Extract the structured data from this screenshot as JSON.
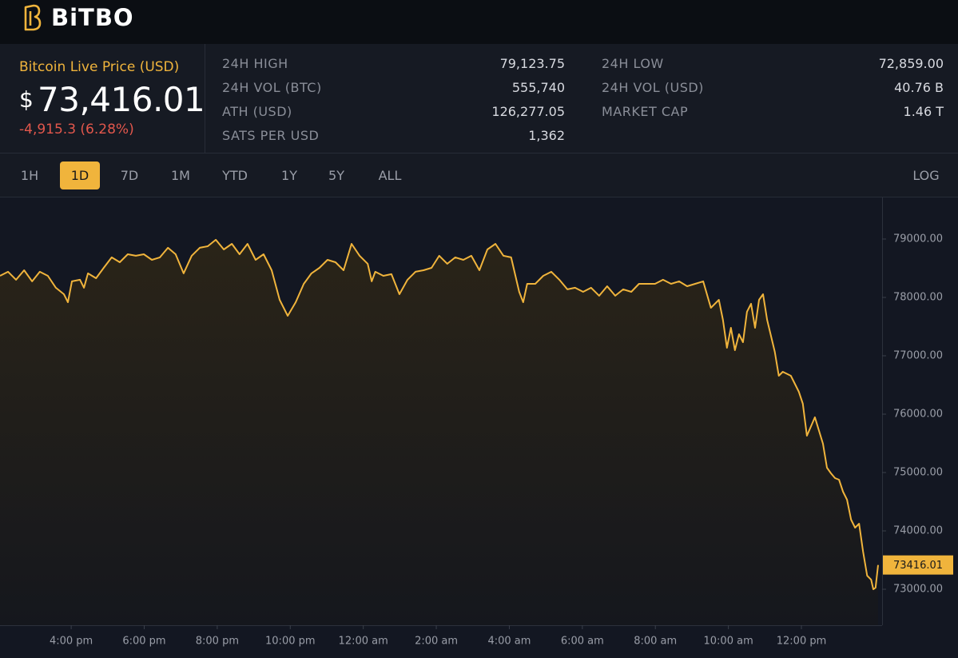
{
  "header": {
    "logo": "BiTBO"
  },
  "price_panel": {
    "label": "Bitcoin Live Price (USD)",
    "currency_symbol": "$",
    "price": "73,416.01",
    "change": "-4,915.3 (6.28%)"
  },
  "stats_left": [
    {
      "label": "24H HIGH",
      "value": "79,123.75"
    },
    {
      "label": "24H VOL (BTC)",
      "value": "555,740"
    },
    {
      "label": "ATH (USD)",
      "value": "126,277.05"
    },
    {
      "label": "SATS PER USD",
      "value": "1,362"
    }
  ],
  "stats_right": [
    {
      "label": "24H LOW",
      "value": "72,859.00"
    },
    {
      "label": "24H VOL (USD)",
      "value": "40.76 B"
    },
    {
      "label": "MARKET CAP",
      "value": "1.46 T"
    }
  ],
  "timeframes": [
    "1H",
    "1D",
    "7D",
    "1M",
    "YTD",
    "1Y",
    "5Y",
    "ALL"
  ],
  "selected_timeframe_index": 1,
  "log_toggle": "LOG",
  "chart_data": {
    "type": "area",
    "color": "#f0b43c",
    "grid": false,
    "x": [
      14.05,
      14.27,
      14.49,
      14.71,
      14.93,
      15.14,
      15.36,
      15.58,
      15.8,
      15.91,
      16.02,
      16.24,
      16.35,
      16.46,
      16.68,
      16.89,
      17.11,
      17.33,
      17.55,
      17.77,
      17.99,
      18.21,
      18.43,
      18.65,
      18.86,
      19.08,
      19.3,
      19.52,
      19.74,
      19.96,
      20.18,
      20.4,
      20.61,
      20.83,
      21.05,
      21.27,
      21.49,
      21.71,
      21.93,
      22.15,
      22.37,
      22.58,
      22.8,
      23.02,
      23.24,
      23.46,
      23.68,
      23.9,
      24.12,
      24.23,
      24.33,
      24.55,
      24.77,
      24.99,
      25.21,
      25.43,
      25.65,
      25.87,
      26.08,
      26.3,
      26.52,
      26.74,
      26.96,
      27.18,
      27.4,
      27.62,
      27.84,
      28.05,
      28.27,
      28.38,
      28.49,
      28.71,
      28.93,
      29.15,
      29.37,
      29.59,
      29.8,
      30.02,
      30.24,
      30.46,
      30.68,
      30.9,
      31.12,
      31.34,
      31.55,
      31.77,
      31.99,
      32.21,
      32.43,
      32.65,
      32.87,
      33.09,
      33.31,
      33.52,
      33.74,
      33.85,
      33.96,
      34.07,
      34.18,
      34.29,
      34.4,
      34.51,
      34.62,
      34.73,
      34.84,
      34.95,
      35.06,
      35.27,
      35.38,
      35.49,
      35.71,
      35.93,
      36.04,
      36.15,
      36.37,
      36.59,
      36.7,
      36.81,
      36.92,
      37.03,
      37.14,
      37.25,
      37.36,
      37.47,
      37.58,
      37.69,
      37.8,
      37.91,
      37.97,
      38.03,
      38.1
    ],
    "values": [
      78370,
      78439,
      78302,
      78466,
      78275,
      78439,
      78370,
      78165,
      78055,
      77918,
      78275,
      78302,
      78165,
      78412,
      78329,
      78507,
      78686,
      78603,
      78740,
      78713,
      78740,
      78644,
      78686,
      78850,
      78740,
      78412,
      78713,
      78850,
      78877,
      78987,
      78822,
      78918,
      78740,
      78918,
      78644,
      78740,
      78466,
      77959,
      77685,
      77918,
      78233,
      78412,
      78507,
      78644,
      78603,
      78466,
      78918,
      78713,
      78576,
      78275,
      78439,
      78370,
      78398,
      78055,
      78302,
      78439,
      78466,
      78507,
      78713,
      78576,
      78686,
      78644,
      78713,
      78466,
      78822,
      78918,
      78713,
      78686,
      78096,
      77918,
      78233,
      78233,
      78370,
      78439,
      78302,
      78138,
      78165,
      78096,
      78165,
      78028,
      78192,
      78028,
      78138,
      78096,
      78233,
      78233,
      78233,
      78302,
      78233,
      78275,
      78192,
      78233,
      78275,
      77822,
      77959,
      77617,
      77137,
      77480,
      77096,
      77370,
      77233,
      77754,
      77891,
      77480,
      77959,
      78055,
      77617,
      77069,
      76658,
      76726,
      76658,
      76384,
      76178,
      75630,
      75946,
      75493,
      75082,
      74987,
      74904,
      74877,
      74671,
      74534,
      74192,
      74055,
      74123,
      73644,
      73233,
      73164,
      73000,
      73027,
      73416.01
    ],
    "current_price": 73416.01,
    "xlim": [
      14.05,
      38.21
    ],
    "ylim": [
      72384,
      79712
    ],
    "xticks": [
      {
        "value": 16,
        "label": "4:00 pm"
      },
      {
        "value": 18,
        "label": "6:00 pm"
      },
      {
        "value": 20,
        "label": "8:00 pm"
      },
      {
        "value": 22,
        "label": "10:00 pm"
      },
      {
        "value": 24,
        "label": "12:00 am"
      },
      {
        "value": 26,
        "label": "2:00 am"
      },
      {
        "value": 28,
        "label": "4:00 am"
      },
      {
        "value": 30,
        "label": "6:00 am"
      },
      {
        "value": 32,
        "label": "8:00 am"
      },
      {
        "value": 34,
        "label": "10:00 am"
      },
      {
        "value": 36,
        "label": "12:00 pm"
      }
    ],
    "yticks": [
      {
        "value": 73000,
        "label": "73000.00"
      },
      {
        "value": 74000,
        "label": "74000.00"
      },
      {
        "value": 75000,
        "label": "75000.00"
      },
      {
        "value": 76000,
        "label": "76000.00"
      },
      {
        "value": 77000,
        "label": "77000.00"
      },
      {
        "value": 78000,
        "label": "78000.00"
      },
      {
        "value": 79000,
        "label": "79000.00"
      }
    ]
  }
}
